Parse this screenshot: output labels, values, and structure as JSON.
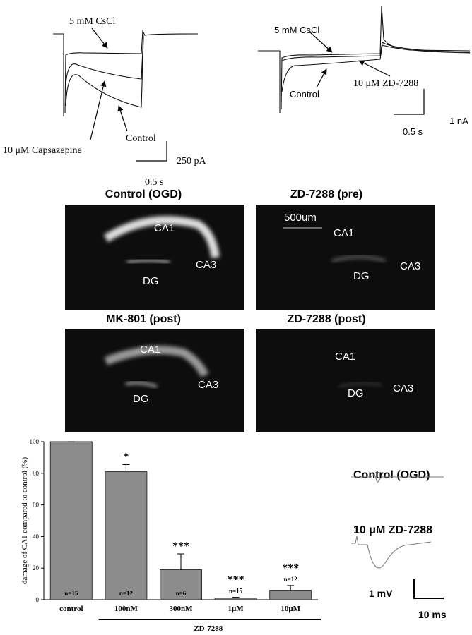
{
  "panel_a": {
    "label_cscl": "5 mM CsCl",
    "label_capsazepine": "10 μM Capsazepine",
    "label_control": "Control",
    "scale_y": "250 pA",
    "scale_x": "0.5 s"
  },
  "panel_b": {
    "label_cscl": "5 mM CsCl",
    "label_zd": "10 μM ZD-7288",
    "label_control": "Control",
    "scale_y": "1 nA",
    "scale_x": "0.5 s"
  },
  "images": [
    {
      "title": "Control (OGD)",
      "regions": [
        "CA1",
        "CA3",
        "DG"
      ]
    },
    {
      "title": "ZD-7288  (pre)",
      "scale": "500um",
      "regions": [
        "CA1",
        "CA3",
        "DG"
      ]
    },
    {
      "title": "MK-801 (post)",
      "regions": [
        "CA1",
        "CA3",
        "DG"
      ]
    },
    {
      "title": "ZD-7288  (post)",
      "regions": [
        "CA1",
        "CA3",
        "DG"
      ]
    }
  ],
  "chart_data": {
    "type": "bar",
    "ylabel": "damage of CA1 compared to control (%)",
    "categories": [
      "control",
      "100nM",
      "300nM",
      "1μM",
      "10μM"
    ],
    "values": [
      100,
      81,
      19,
      1,
      6
    ],
    "errors": [
      0,
      4.5,
      10,
      0.5,
      3
    ],
    "n_labels": [
      "n=15",
      "n=12",
      "n=6",
      "n=15",
      "n=12"
    ],
    "significance": [
      null,
      "*",
      "***",
      "***",
      "***"
    ],
    "group_label": "ZD-7288",
    "color": "#8c8c8c",
    "ylim": [
      0,
      100
    ],
    "yticks": [
      0,
      20,
      40,
      60,
      80,
      100
    ]
  },
  "panel_e": {
    "trace_1": "Control (OGD)",
    "trace_2": "10 μM ZD-7288",
    "scale_y": "1 mV",
    "scale_x": "10 ms"
  }
}
